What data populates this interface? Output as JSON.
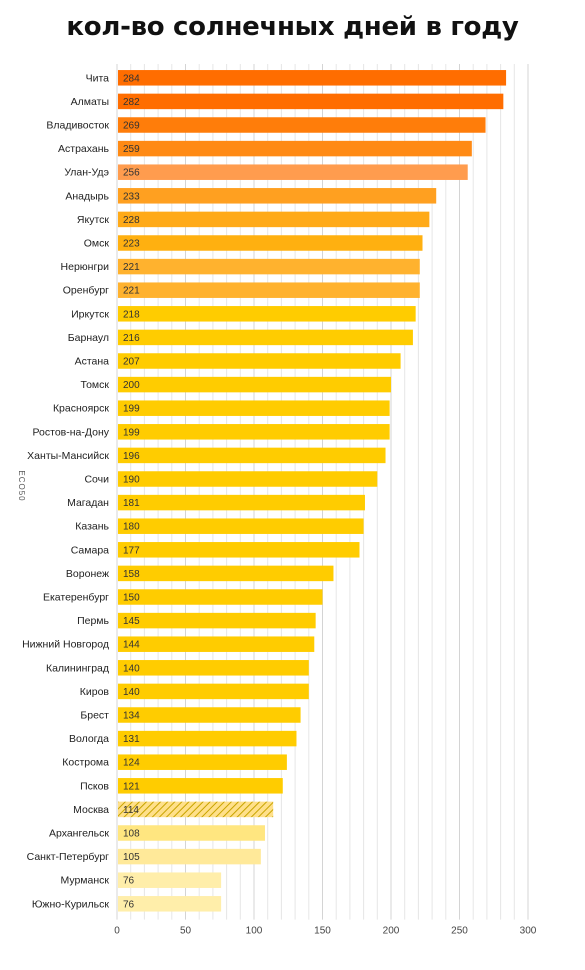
{
  "chart_data": {
    "type": "bar",
    "orientation": "horizontal",
    "title": "кол-во солнечных дней в году",
    "xlabel": "",
    "ylabel": "",
    "xlim": [
      0,
      300
    ],
    "x_ticks": [
      0,
      50,
      100,
      150,
      200,
      250,
      300
    ],
    "grid": "vertical",
    "legend": "none",
    "categories": [
      "Чита",
      "Алматы",
      "Владивосток",
      "Астрахань",
      "Улан-Удэ",
      "Анадырь",
      "Якутск",
      "Омск",
      "Нерюнгри",
      "Оренбург",
      "Иркутск",
      "Барнаул",
      "Астана",
      "Томск",
      "Красноярск",
      "Ростов-на-Дону",
      "Ханты-Мансийск",
      "Сочи",
      "Магадан",
      "Казань",
      "Самара",
      "Воронеж",
      "Екатеренбург",
      "Пермь",
      "Нижний Новгород",
      "Калининград",
      "Киров",
      "Брест",
      "Вологда",
      "Кострома",
      "Псков",
      "Москва",
      "Архангельск",
      "Санкт-Петербург",
      "Мурманск",
      "Южно-Курильск"
    ],
    "values": [
      284,
      282,
      269,
      259,
      256,
      233,
      228,
      223,
      221,
      221,
      218,
      216,
      207,
      200,
      199,
      199,
      196,
      190,
      181,
      180,
      177,
      158,
      150,
      145,
      144,
      140,
      140,
      134,
      131,
      124,
      121,
      114,
      108,
      105,
      76,
      76
    ],
    "bar_colors": [
      "#ff6d00",
      "#ff6d00",
      "#ff7d0a",
      "#ff8a14",
      "#ff9c4e",
      "#ffa020",
      "#ffaa18",
      "#ffb010",
      "#ffb22e",
      "#ffb22e",
      "#ffcc00",
      "#ffcc00",
      "#ffcc00",
      "#ffcc00",
      "#ffcc00",
      "#ffcc00",
      "#ffcc00",
      "#ffcc00",
      "#ffcc00",
      "#ffcc00",
      "#ffcc00",
      "#ffcc00",
      "#ffcc00",
      "#ffcc00",
      "#ffcc00",
      "#ffcc00",
      "#ffcc00",
      "#ffcc00",
      "#ffcc00",
      "#ffcc00",
      "#ffcc00",
      "#ffdd66",
      "#ffe680",
      "#ffe999",
      "#ffeeaa",
      "#ffeeaa"
    ],
    "hatched_category": "Москва"
  },
  "watermark": "ECO50"
}
